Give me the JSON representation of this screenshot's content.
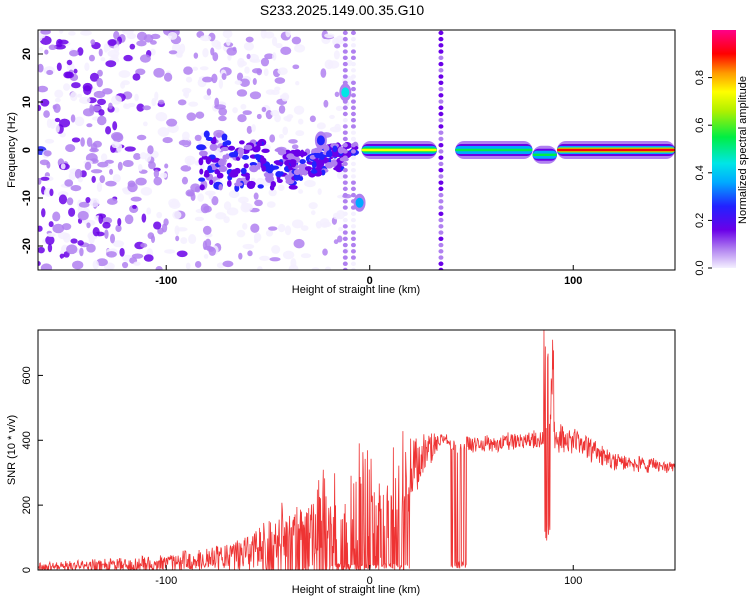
{
  "title": "S233.2025.149.00.35.G10",
  "chart_data": [
    {
      "type": "heatmap",
      "xlabel": "Height of straight line (km)",
      "ylabel": "Frequency (Hz)",
      "xlim": [
        -163,
        150
      ],
      "ylim": [
        -25,
        25
      ],
      "x_ticks": [
        -100,
        0,
        100
      ],
      "y_ticks": [
        -20,
        -10,
        0,
        10,
        20
      ],
      "colorbar": {
        "label": "Normalized spectral amplitude",
        "range": [
          0.0,
          1.0
        ],
        "ticks": [
          0.0,
          0.2,
          0.4,
          0.6,
          0.8
        ],
        "colors": [
          "#f4f0ff",
          "#b080f0",
          "#6a00e8",
          "#2222ff",
          "#00aaff",
          "#00e6e6",
          "#00ee44",
          "#b0f000",
          "#ffff00",
          "#ff9900",
          "#ff0000",
          "#ff0088"
        ]
      },
      "scatter_region": {
        "x": [
          -163,
          -10
        ],
        "y_spread": 25
      },
      "band": [
        {
          "x": -75,
          "y": -2,
          "width": 6
        },
        {
          "x": -60,
          "y": -3,
          "width": 5
        },
        {
          "x": -45,
          "y": -4,
          "width": 4
        },
        {
          "x": -30,
          "y": -3,
          "width": 3
        },
        {
          "x": -20,
          "y": -2,
          "width": 2
        },
        {
          "x": -15,
          "y": 0,
          "width": 1
        }
      ],
      "track_segments": [
        {
          "x": [
            -4,
            33
          ],
          "y": 0,
          "amp": 0.75
        },
        {
          "x": 42,
          "y": 0,
          "amp": 0.6,
          "x_end": 80
        },
        {
          "x": 80,
          "y": -1,
          "amp": 0.55,
          "x_end": 92
        },
        {
          "x": 92,
          "y": 0,
          "amp": 0.95,
          "x_end": 150
        }
      ],
      "isolated_blobs": [
        {
          "x": -12,
          "y": 12,
          "amp": 0.5
        },
        {
          "x": -5,
          "y": -11,
          "amp": 0.45
        },
        {
          "x": -24,
          "y": 2,
          "amp": 0.3
        }
      ],
      "vertical_streaks": [
        {
          "x": -12,
          "amp": 0.15
        },
        {
          "x": -8,
          "amp": 0.12
        },
        {
          "x": 35,
          "amp": 0.25
        }
      ]
    },
    {
      "type": "line",
      "xlabel": "Height of straight line (km)",
      "ylabel": "SNR (10 * v/v)",
      "xlim": [
        -163,
        150
      ],
      "ylim": [
        0,
        740
      ],
      "x_ticks": [
        -100,
        0,
        100
      ],
      "y_ticks": [
        0,
        200,
        400,
        600
      ],
      "color": "#ee3333",
      "envelope": {
        "x": [
          -163,
          -140,
          -120,
          -100,
          -80,
          -65,
          -55,
          -45,
          -35,
          -25,
          -15,
          -5,
          5,
          15,
          25,
          33,
          36,
          42,
          50,
          60,
          70,
          80,
          86,
          90,
          94,
          100,
          110,
          120,
          130,
          140,
          150
        ],
        "y": [
          20,
          25,
          30,
          40,
          60,
          80,
          110,
          150,
          180,
          220,
          260,
          300,
          340,
          370,
          400,
          410,
          420,
          390,
          410,
          410,
          415,
          420,
          430,
          450,
          440,
          420,
          390,
          360,
          345,
          335,
          330
        ]
      },
      "noise": [
        15,
        20,
        25,
        30,
        45,
        60,
        90,
        150,
        200,
        240,
        260,
        270,
        230,
        180,
        80,
        40,
        20,
        25,
        30,
        30,
        30,
        30,
        40,
        60,
        50,
        45,
        40,
        35,
        30,
        25,
        20
      ],
      "dropouts": [
        {
          "x": [
            -20,
            20
          ],
          "min": 0
        },
        {
          "x": [
            40,
            49
          ],
          "min": 5
        }
      ],
      "peak": {
        "x": 88,
        "y": 740
      }
    }
  ]
}
